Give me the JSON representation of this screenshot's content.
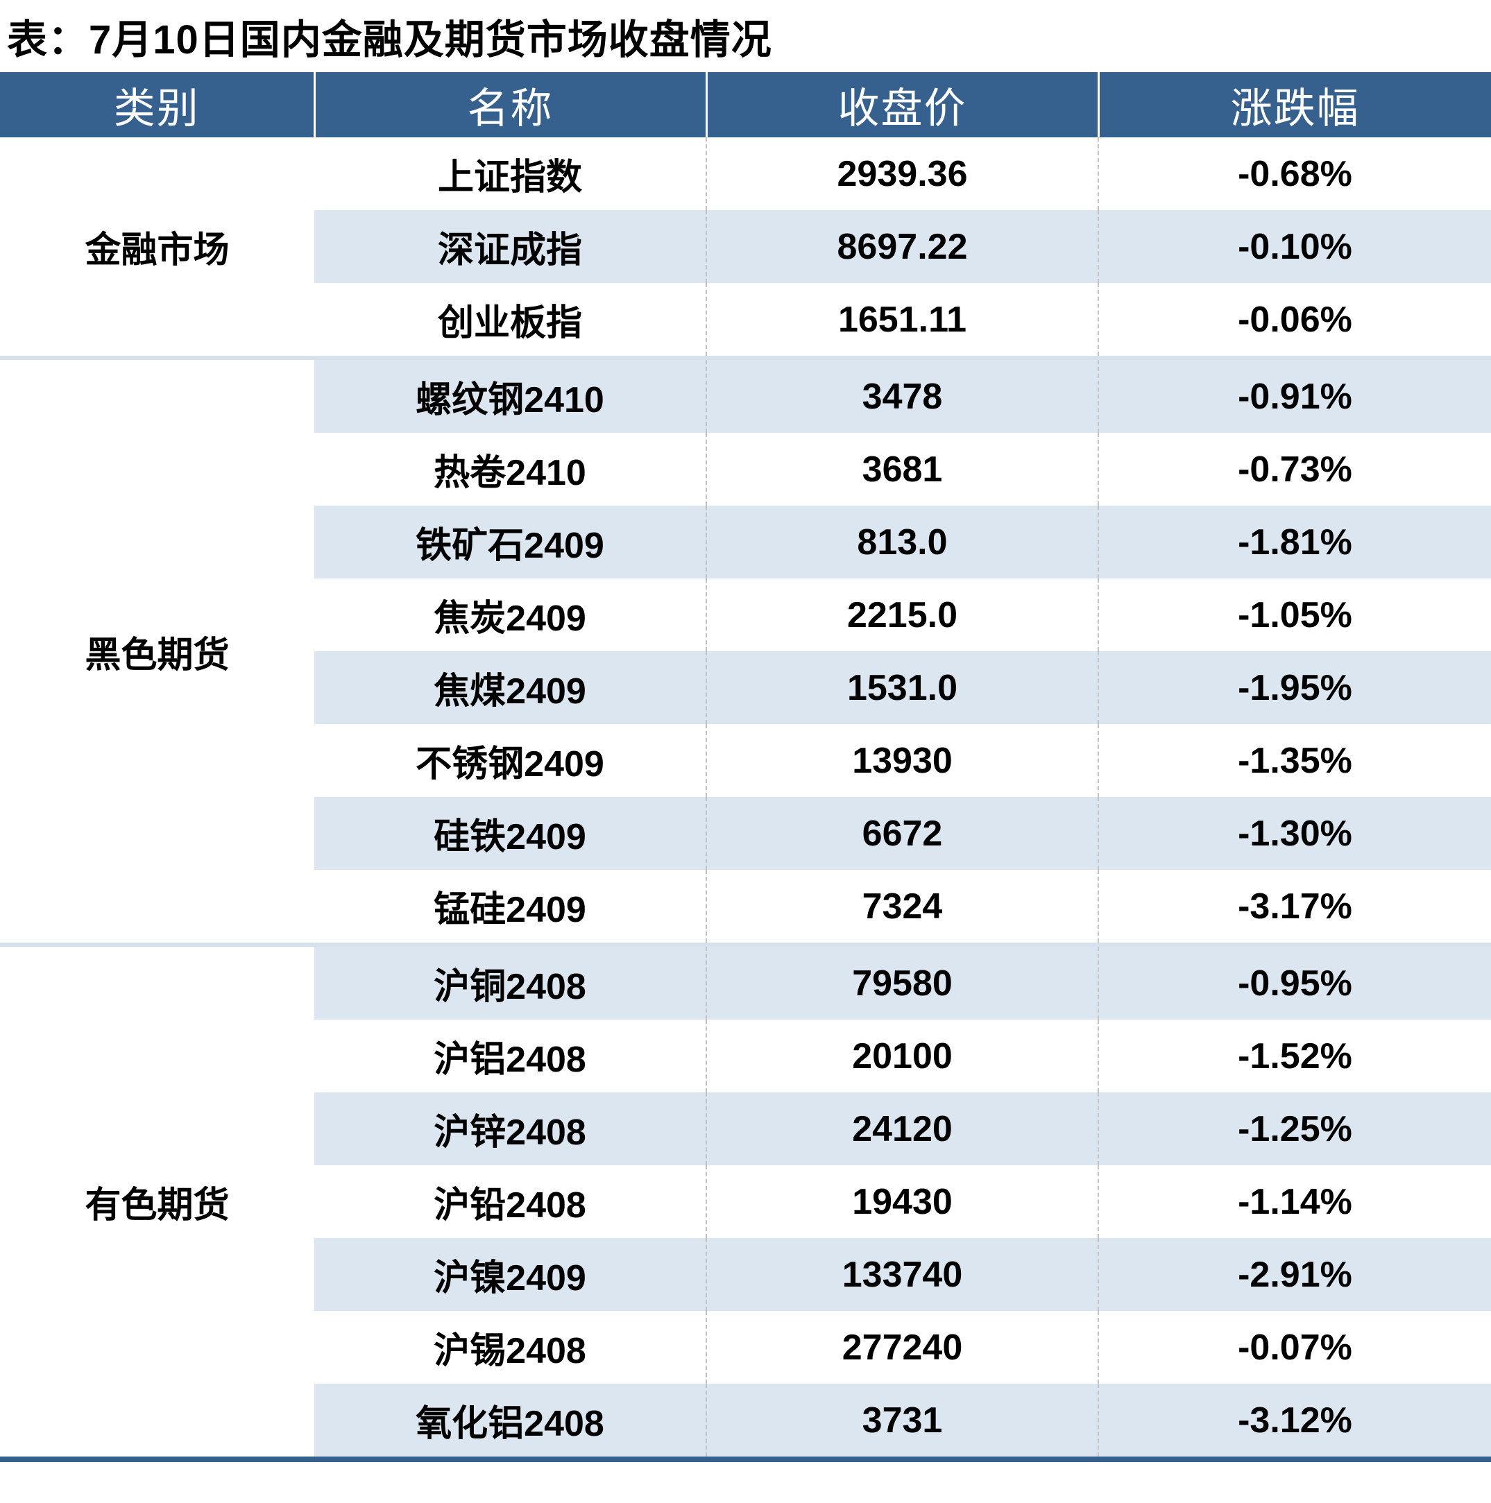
{
  "title": "表：7月10日国内金融及期货市场收盘情况",
  "chart_data": {
    "type": "table",
    "title": "表：7月10日国内金融及期货市场收盘情况",
    "columns": [
      "类别",
      "名称",
      "收盘价",
      "涨跌幅"
    ],
    "groups": [
      {
        "category": "金融市场",
        "rows": [
          {
            "name": "上证指数",
            "close": "2939.36",
            "change": "-0.68%"
          },
          {
            "name": "深证成指",
            "close": "8697.22",
            "change": "-0.10%"
          },
          {
            "name": "创业板指",
            "close": "1651.11",
            "change": "-0.06%"
          }
        ]
      },
      {
        "category": "黑色期货",
        "rows": [
          {
            "name": "螺纹钢2410",
            "close": "3478",
            "change": "-0.91%"
          },
          {
            "name": "热卷2410",
            "close": "3681",
            "change": "-0.73%"
          },
          {
            "name": "铁矿石2409",
            "close": "813.0",
            "change": "-1.81%"
          },
          {
            "name": "焦炭2409",
            "close": "2215.0",
            "change": "-1.05%"
          },
          {
            "name": "焦煤2409",
            "close": "1531.0",
            "change": "-1.95%"
          },
          {
            "name": "不锈钢2409",
            "close": "13930",
            "change": "-1.35%"
          },
          {
            "name": "硅铁2409",
            "close": "6672",
            "change": "-1.30%"
          },
          {
            "name": "锰硅2409",
            "close": "7324",
            "change": "-3.17%"
          }
        ]
      },
      {
        "category": "有色期货",
        "rows": [
          {
            "name": "沪铜2408",
            "close": "79580",
            "change": "-0.95%"
          },
          {
            "name": "沪铝2408",
            "close": "20100",
            "change": "-1.52%"
          },
          {
            "name": "沪锌2408",
            "close": "24120",
            "change": "-1.25%"
          },
          {
            "name": "沪铅2408",
            "close": "19430",
            "change": "-1.14%"
          },
          {
            "name": "沪镍2409",
            "close": "133740",
            "change": "-2.91%"
          },
          {
            "name": "沪锡2408",
            "close": "277240",
            "change": "-0.07%"
          },
          {
            "name": "氧化铝2408",
            "close": "3731",
            "change": "-3.12%"
          }
        ]
      }
    ]
  },
  "colors": {
    "header_bg": "#36618e",
    "header_text": "#ffffff",
    "alt_row_bg": "#dce6f1",
    "group_separator": "#d7e1ee",
    "dashed_divider": "#c2c2c2",
    "change_green": "#4f7d33",
    "body_text": "#000000",
    "bottom_bar": "#36618e"
  }
}
